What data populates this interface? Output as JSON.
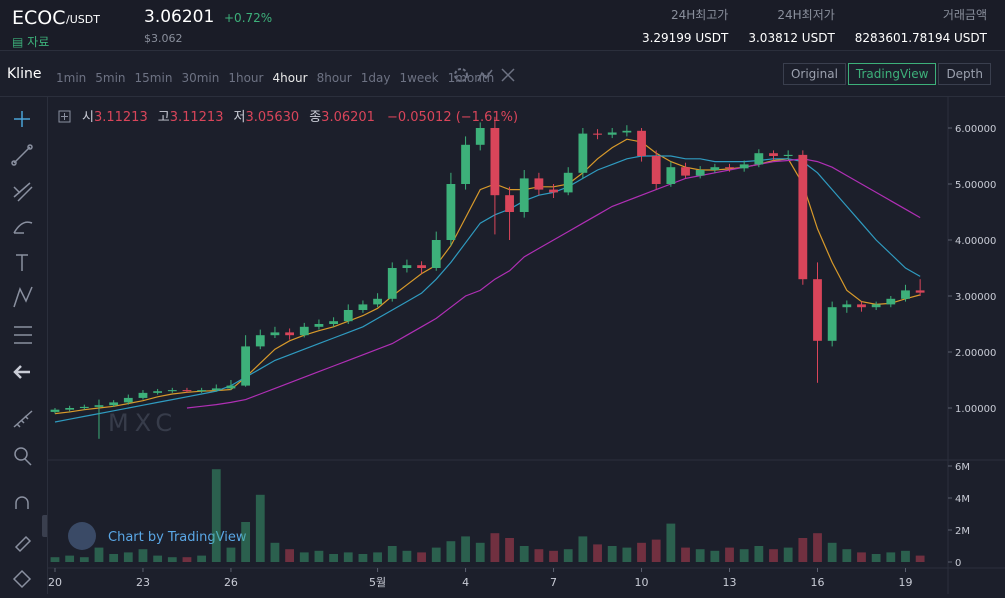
{
  "header": {
    "symbol": "ECOC",
    "quote": "/USDT",
    "info_link": "자료",
    "price": "3.06201",
    "change": "+0.72%",
    "price_usd": "$3.062",
    "stats": [
      {
        "label": "24H최고가",
        "value": "3.29199 USDT"
      },
      {
        "label": "24H최저가",
        "value": "3.03812 USDT"
      },
      {
        "label": "거래금액",
        "value": "8283601.78194 USDT"
      }
    ]
  },
  "toolbar": {
    "title": "Kline",
    "intervals": [
      "1min",
      "5min",
      "15min",
      "30min",
      "1hour",
      "4hour",
      "8hour",
      "1day",
      "1week",
      "1month"
    ],
    "active_interval": "4hour",
    "views": [
      "Original",
      "TradingView",
      "Depth"
    ],
    "active_view": "TradingView"
  },
  "chart": {
    "type": "candlestick",
    "legend": [
      {
        "label": "시",
        "value": "3.11213"
      },
      {
        "label": "고",
        "value": "3.11213"
      },
      {
        "label": "저",
        "value": "3.05630"
      },
      {
        "label": "종",
        "value": "3.06201"
      }
    ],
    "legend_change": "−0.05012 (−1.61%)",
    "watermark": "MXC",
    "credit": "Chart by TradingView",
    "up_color": "#3db07a",
    "down_color": "#d9455a",
    "x": [
      0,
      0.5,
      1,
      1.5,
      2,
      2.5,
      3,
      3.5,
      4,
      4.5,
      5,
      5.5,
      6,
      6.5,
      7,
      7.5,
      8,
      8.5,
      9,
      9.5,
      10,
      10.5,
      11,
      11.5,
      12,
      12.5,
      13,
      13.5,
      14,
      14.5,
      15,
      15.5,
      16,
      16.5,
      17,
      17.5,
      18,
      18.5,
      19,
      19.5,
      20,
      20.5,
      21,
      21.5,
      22,
      22.5,
      23,
      23.5,
      24,
      24.5,
      25,
      25.5,
      26,
      26.5,
      27,
      27.5,
      28,
      28.5,
      29,
      29.5
    ],
    "open": [
      0.93,
      0.97,
      1.0,
      1.02,
      1.05,
      1.1,
      1.18,
      1.27,
      1.3,
      1.32,
      1.3,
      1.32,
      1.35,
      1.4,
      2.1,
      2.3,
      2.35,
      2.3,
      2.45,
      2.5,
      2.55,
      2.75,
      2.85,
      2.95,
      3.5,
      3.55,
      3.5,
      4.0,
      5.0,
      5.7,
      6.0,
      4.8,
      4.5,
      5.1,
      4.9,
      4.85,
      5.2,
      5.9,
      5.88,
      5.92,
      5.95,
      5.5,
      5.0,
      5.3,
      5.15,
      5.25,
      5.3,
      5.28,
      5.35,
      5.55,
      5.5,
      5.52,
      3.3,
      2.2,
      2.8,
      2.85,
      2.8,
      2.85,
      2.95,
      3.1
    ],
    "high": [
      1.0,
      1.04,
      1.06,
      1.15,
      1.14,
      1.24,
      1.32,
      1.34,
      1.36,
      1.36,
      1.36,
      1.42,
      1.5,
      2.3,
      2.4,
      2.45,
      2.42,
      2.52,
      2.58,
      2.62,
      2.85,
      2.92,
      3.05,
      3.6,
      3.65,
      3.62,
      4.15,
      5.2,
      5.85,
      6.1,
      6.2,
      4.95,
      5.25,
      5.2,
      5.0,
      5.3,
      6.0,
      5.98,
      6.0,
      6.05,
      6.0,
      5.6,
      5.4,
      5.38,
      5.32,
      5.36,
      5.36,
      5.42,
      5.62,
      5.6,
      5.6,
      5.6,
      3.6,
      2.9,
      2.92,
      2.9,
      2.9,
      3.0,
      3.2,
      3.3
    ],
    "low": [
      0.9,
      0.94,
      0.97,
      0.45,
      1.02,
      1.06,
      1.15,
      1.24,
      1.27,
      1.27,
      1.27,
      1.29,
      1.32,
      1.38,
      2.05,
      2.25,
      2.22,
      2.26,
      2.4,
      2.45,
      2.5,
      2.7,
      2.8,
      2.9,
      3.42,
      3.4,
      3.45,
      3.9,
      4.9,
      5.6,
      4.1,
      4.0,
      4.4,
      4.8,
      4.75,
      4.8,
      5.1,
      5.8,
      5.82,
      5.85,
      5.4,
      4.9,
      4.95,
      5.1,
      5.1,
      5.2,
      5.22,
      5.22,
      5.3,
      5.42,
      5.45,
      3.2,
      1.45,
      2.1,
      2.7,
      2.72,
      2.75,
      2.8,
      2.9,
      3.0
    ],
    "close": [
      0.97,
      1.0,
      1.02,
      1.05,
      1.1,
      1.18,
      1.27,
      1.3,
      1.32,
      1.3,
      1.32,
      1.35,
      1.4,
      2.1,
      2.3,
      2.35,
      2.3,
      2.45,
      2.5,
      2.55,
      2.75,
      2.85,
      2.95,
      3.5,
      3.55,
      3.5,
      4.0,
      5.0,
      5.7,
      6.0,
      4.8,
      4.5,
      5.1,
      4.9,
      4.85,
      5.2,
      5.9,
      5.88,
      5.92,
      5.95,
      5.5,
      5.0,
      5.3,
      5.15,
      5.25,
      5.3,
      5.28,
      5.35,
      5.55,
      5.5,
      5.52,
      3.3,
      2.2,
      2.8,
      2.85,
      2.8,
      2.85,
      2.95,
      3.1,
      3.06
    ],
    "ma": [
      {
        "color": "#d89a2b",
        "values": [
          0.9,
          0.93,
          0.97,
          1.0,
          1.03,
          1.08,
          1.13,
          1.2,
          1.25,
          1.28,
          1.3,
          1.31,
          1.33,
          1.55,
          1.8,
          2.05,
          2.2,
          2.3,
          2.38,
          2.45,
          2.55,
          2.65,
          2.78,
          3.0,
          3.2,
          3.4,
          3.55,
          3.9,
          4.4,
          4.9,
          5.0,
          4.9,
          4.9,
          4.95,
          4.95,
          5.0,
          5.2,
          5.45,
          5.65,
          5.8,
          5.75,
          5.55,
          5.4,
          5.3,
          5.25,
          5.25,
          5.27,
          5.3,
          5.35,
          5.42,
          5.45,
          5.0,
          4.2,
          3.6,
          3.1,
          2.9,
          2.85,
          2.87,
          2.95,
          3.02
        ]
      },
      {
        "color": "#2f9bc0",
        "values": [
          0.75,
          0.8,
          0.85,
          0.9,
          0.95,
          1.0,
          1.05,
          1.1,
          1.15,
          1.2,
          1.25,
          1.3,
          1.4,
          1.55,
          1.7,
          1.85,
          1.95,
          2.05,
          2.15,
          2.25,
          2.35,
          2.45,
          2.6,
          2.75,
          2.9,
          3.05,
          3.3,
          3.6,
          3.95,
          4.3,
          4.45,
          4.55,
          4.7,
          4.8,
          4.85,
          4.95,
          5.1,
          5.25,
          5.35,
          5.45,
          5.5,
          5.5,
          5.5,
          5.45,
          5.45,
          5.4,
          5.4,
          5.4,
          5.42,
          5.45,
          5.45,
          5.4,
          5.2,
          4.9,
          4.6,
          4.3,
          4.0,
          3.75,
          3.5,
          3.35
        ]
      },
      {
        "color": "#b02fb5",
        "values": [
          null,
          null,
          null,
          null,
          null,
          null,
          null,
          null,
          null,
          1.0,
          1.03,
          1.06,
          1.1,
          1.15,
          1.25,
          1.35,
          1.45,
          1.55,
          1.65,
          1.75,
          1.85,
          1.95,
          2.05,
          2.15,
          2.3,
          2.45,
          2.6,
          2.8,
          3.0,
          3.1,
          3.3,
          3.45,
          3.7,
          3.85,
          4.0,
          4.15,
          4.3,
          4.45,
          4.6,
          4.7,
          4.8,
          4.9,
          5.0,
          5.1,
          5.15,
          5.2,
          5.25,
          5.3,
          5.35,
          5.4,
          5.42,
          5.45,
          5.4,
          5.3,
          5.15,
          5.0,
          4.85,
          4.7,
          4.55,
          4.4
        ]
      }
    ],
    "xlim": [
      -0.17,
      30.45
    ],
    "ylim": [
      0.1,
      6.5
    ],
    "yticks": [
      {
        "value": 6,
        "label": "6.00000"
      },
      {
        "value": 5,
        "label": "5.00000"
      },
      {
        "value": 4,
        "label": "4.00000"
      },
      {
        "value": 3,
        "label": "3.00000"
      },
      {
        "value": 2,
        "label": "2.00000"
      },
      {
        "value": 1,
        "label": "1.00000"
      }
    ],
    "xticks": [
      {
        "value": 0,
        "label": "20"
      },
      {
        "value": 3,
        "label": "23"
      },
      {
        "value": 6,
        "label": "26"
      },
      {
        "value": 11,
        "label": "5월"
      },
      {
        "value": 14,
        "label": "4"
      },
      {
        "value": 17,
        "label": "7"
      },
      {
        "value": 20,
        "label": "10"
      },
      {
        "value": 23,
        "label": "13"
      },
      {
        "value": 26,
        "label": "16"
      },
      {
        "value": 29,
        "label": "19"
      }
    ],
    "volume": {
      "values": [
        300000,
        400000,
        300000,
        900000,
        500000,
        600000,
        800000,
        400000,
        300000,
        300000,
        400000,
        5800000,
        900000,
        2500000,
        4200000,
        1200000,
        800000,
        600000,
        700000,
        500000,
        600000,
        500000,
        600000,
        1000000,
        700000,
        600000,
        900000,
        1300000,
        1600000,
        1200000,
        1800000,
        1500000,
        1000000,
        800000,
        700000,
        800000,
        1600000,
        1100000,
        1000000,
        900000,
        1200000,
        1400000,
        2400000,
        900000,
        800000,
        700000,
        900000,
        800000,
        1000000,
        800000,
        900000,
        1500000,
        1800000,
        1200000,
        800000,
        600000,
        500000,
        600000,
        700000,
        400000
      ],
      "ylim": [
        0,
        6250000
      ],
      "yticks": [
        {
          "value": 6000000,
          "label": "6M"
        },
        {
          "value": 4000000,
          "label": "4M"
        },
        {
          "value": 2000000,
          "label": "2M"
        },
        0
      ]
    }
  }
}
